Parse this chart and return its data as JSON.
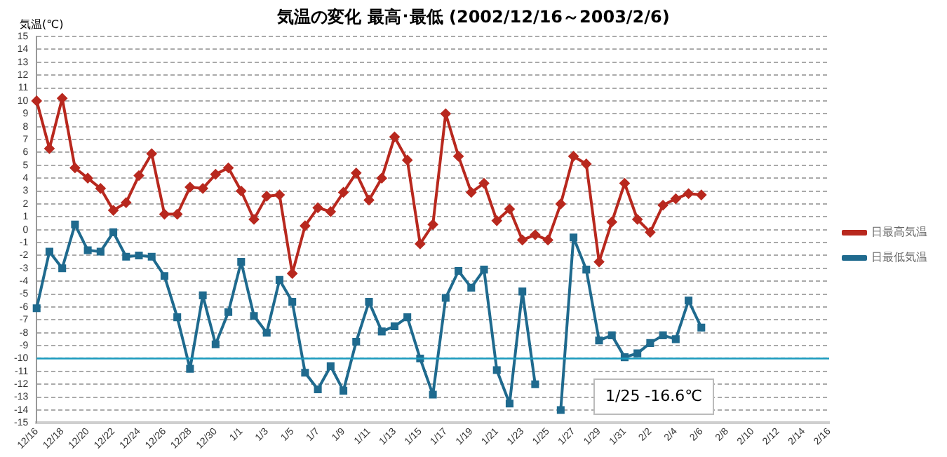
{
  "chart_data": {
    "type": "line",
    "title": "気温の変化  最高･最低  (2002/12/16～2003/2/6)",
    "ylabel": "気温(℃)",
    "categories": [
      "12/16",
      null,
      "12/18",
      null,
      "12/20",
      null,
      "12/22",
      null,
      "12/24",
      null,
      "12/26",
      null,
      "12/28",
      null,
      "12/30",
      null,
      "1/1",
      null,
      "1/3",
      null,
      "1/5",
      null,
      "1/7",
      null,
      "1/9",
      null,
      "1/11",
      null,
      "1/13",
      null,
      "1/15",
      null,
      "1/17",
      null,
      "1/19",
      null,
      "1/21",
      null,
      "1/23",
      null,
      "1/25",
      null,
      "1/27",
      null,
      "1/29",
      null,
      "1/31",
      null,
      "2/2",
      null,
      "2/4",
      null,
      "2/6",
      null,
      "2/8",
      null,
      "2/10",
      null,
      "2/12",
      null,
      "2/14",
      null,
      "2/16"
    ],
    "series": [
      {
        "name": "日最高気温",
        "color": "#b8281e",
        "marker": "diamond",
        "values": [
          10.0,
          6.3,
          10.2,
          4.8,
          4.0,
          3.2,
          1.5,
          2.1,
          4.2,
          5.9,
          1.2,
          1.2,
          3.3,
          3.2,
          4.3,
          4.8,
          3.0,
          0.8,
          2.6,
          2.7,
          -3.4,
          0.3,
          1.7,
          1.4,
          2.9,
          4.4,
          2.3,
          4.0,
          7.2,
          5.4,
          -1.1,
          0.4,
          9.0,
          5.7,
          2.9,
          3.6,
          0.7,
          1.6,
          -0.8,
          -0.4,
          -0.8,
          2.0,
          5.7,
          5.1,
          -2.5,
          0.6,
          3.6,
          0.8,
          -0.2,
          1.9,
          2.4,
          2.8,
          2.7,
          null,
          null,
          null,
          null,
          null,
          null,
          null,
          null,
          null,
          null
        ]
      },
      {
        "name": "日最低気温",
        "color": "#1f6a8e",
        "marker": "square",
        "values": [
          -6.1,
          -1.7,
          -3.0,
          0.4,
          -1.6,
          -1.7,
          -0.2,
          -2.1,
          -2.0,
          -2.1,
          -3.6,
          -6.8,
          -10.8,
          -5.1,
          -8.9,
          -6.4,
          -2.5,
          -6.7,
          -8.0,
          -3.9,
          -5.6,
          -11.1,
          -12.4,
          -10.6,
          -12.5,
          -8.7,
          -5.6,
          -7.9,
          -7.5,
          -6.8,
          -10.0,
          -12.8,
          -5.3,
          -3.2,
          -4.5,
          -3.1,
          -10.9,
          -13.5,
          -4.8,
          -12.0,
          null,
          -14.0,
          -0.6,
          -3.1,
          -8.6,
          -8.2,
          -9.9,
          -9.6,
          -8.8,
          -8.2,
          -8.5,
          -5.5,
          -7.6,
          null,
          null,
          null,
          null,
          null,
          null,
          null,
          null,
          null,
          null
        ]
      }
    ],
    "ylim": [
      -15,
      15
    ],
    "yticks": [
      -15,
      -14,
      -13,
      -12,
      -11,
      -10,
      -9,
      -8,
      -7,
      -6,
      -5,
      -4,
      -3,
      -2,
      -1,
      0,
      1,
      2,
      3,
      4,
      5,
      6,
      7,
      8,
      9,
      10,
      11,
      12,
      13,
      14,
      15
    ],
    "ref_lines": [
      {
        "axis": "y",
        "value": -10,
        "color": "#1a9bbf"
      }
    ],
    "annotations": [
      "1/25 -16.6℃"
    ],
    "grid": "y",
    "legend": "right",
    "line_style": "solid"
  }
}
